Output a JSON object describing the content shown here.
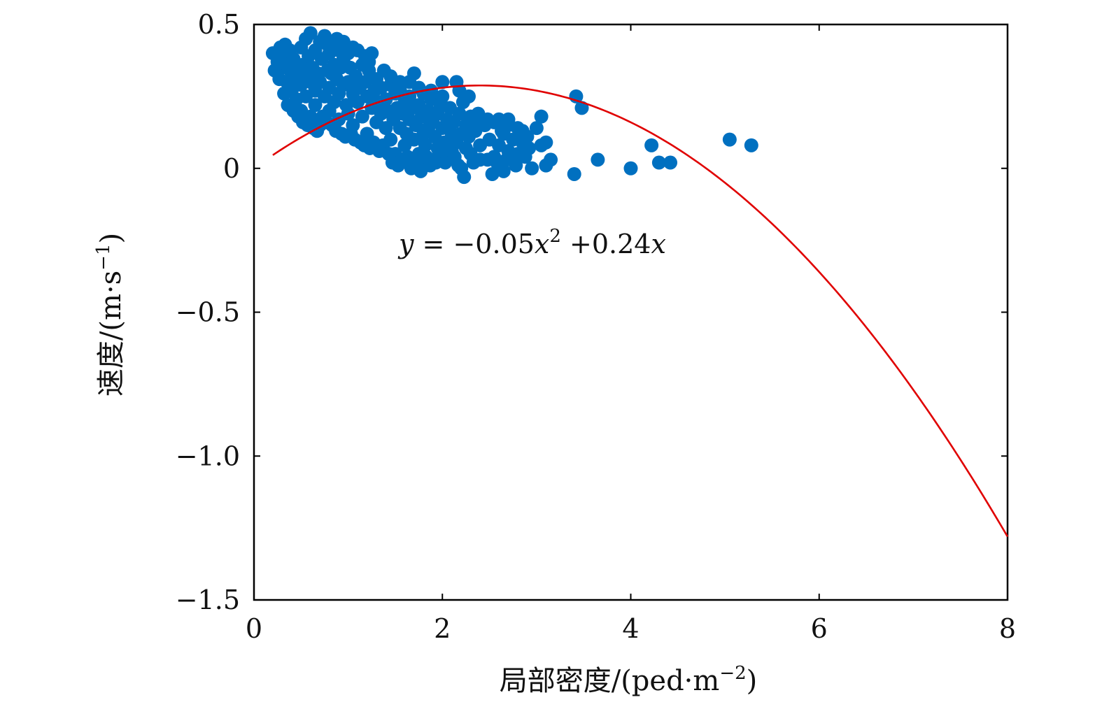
{
  "chart_data": {
    "type": "scatter",
    "xlabel": "局部密度/(ped·m",
    "xlabel_sup": "−2",
    "xlabel_end": ")",
    "ylabel": "速度/(m·s",
    "ylabel_sup": "−1",
    "ylabel_end": ")",
    "xlim": [
      0,
      8
    ],
    "ylim": [
      -1.5,
      0.5
    ],
    "x_ticks": [
      0,
      2,
      4,
      6,
      8
    ],
    "x_tick_labels": [
      "0",
      "2",
      "4",
      "6",
      "8"
    ],
    "y_ticks": [
      0.5,
      0,
      -0.5,
      -1.0,
      -1.5
    ],
    "y_tick_labels": [
      "0.5",
      "0",
      "−0.5",
      "−1.0",
      "−1.5"
    ],
    "grid": false,
    "colors": {
      "points": "#0070c0",
      "fit_line": "#e00000",
      "axes": "#000000"
    },
    "annotation": {
      "y_var": "y",
      "equals": " = −0.05",
      "x_var1": "x",
      "x_sup": "2",
      "plus": " +0.24",
      "x_var2": "x"
    },
    "fit": {
      "equation": "y = -0.05x^2 + 0.24x",
      "a": -0.05,
      "b": 0.24,
      "c": 0,
      "x_range": [
        0.2,
        8
      ]
    },
    "series": [
      {
        "type": "scatter",
        "points": [
          [
            0.2,
            0.4
          ],
          [
            0.25,
            0.37
          ],
          [
            0.28,
            0.42
          ],
          [
            0.3,
            0.35
          ],
          [
            0.3,
            0.39
          ],
          [
            0.33,
            0.43
          ],
          [
            0.35,
            0.3
          ],
          [
            0.35,
            0.36
          ],
          [
            0.38,
            0.41
          ],
          [
            0.4,
            0.33
          ],
          [
            0.4,
            0.27
          ],
          [
            0.42,
            0.38
          ],
          [
            0.45,
            0.31
          ],
          [
            0.45,
            0.24
          ],
          [
            0.48,
            0.35
          ],
          [
            0.5,
            0.42
          ],
          [
            0.5,
            0.29
          ],
          [
            0.5,
            0.2
          ],
          [
            0.52,
            0.36
          ],
          [
            0.55,
            0.45
          ],
          [
            0.55,
            0.32
          ],
          [
            0.55,
            0.25
          ],
          [
            0.58,
            0.39
          ],
          [
            0.6,
            0.47
          ],
          [
            0.6,
            0.3
          ],
          [
            0.6,
            0.18
          ],
          [
            0.62,
            0.35
          ],
          [
            0.65,
            0.41
          ],
          [
            0.65,
            0.27
          ],
          [
            0.65,
            0.22
          ],
          [
            0.68,
            0.33
          ],
          [
            0.7,
            0.44
          ],
          [
            0.7,
            0.3
          ],
          [
            0.7,
            0.15
          ],
          [
            0.72,
            0.38
          ],
          [
            0.75,
            0.25
          ],
          [
            0.75,
            0.46
          ],
          [
            0.78,
            0.34
          ],
          [
            0.8,
            0.4
          ],
          [
            0.8,
            0.28
          ],
          [
            0.8,
            0.2
          ],
          [
            0.82,
            0.33
          ],
          [
            0.85,
            0.36
          ],
          [
            0.85,
            0.23
          ],
          [
            0.88,
            0.31
          ],
          [
            0.9,
            0.41
          ],
          [
            0.9,
            0.26
          ],
          [
            0.9,
            0.17
          ],
          [
            0.92,
            0.35
          ],
          [
            0.95,
            0.29
          ],
          [
            0.95,
            0.38
          ],
          [
            0.98,
            0.22
          ],
          [
            1.0,
            0.4
          ],
          [
            1.0,
            0.3
          ],
          [
            1.0,
            0.19
          ],
          [
            1.02,
            0.35
          ],
          [
            1.05,
            0.26
          ],
          [
            1.05,
            0.15
          ],
          [
            1.08,
            0.32
          ],
          [
            1.1,
            0.41
          ],
          [
            1.1,
            0.23
          ],
          [
            1.12,
            0.28
          ],
          [
            1.15,
            0.36
          ],
          [
            1.15,
            0.18
          ],
          [
            1.18,
            0.3
          ],
          [
            1.2,
            0.25
          ],
          [
            1.2,
            0.12
          ],
          [
            1.22,
            0.34
          ],
          [
            1.25,
            0.21
          ],
          [
            1.25,
            0.4
          ],
          [
            1.28,
            0.27
          ],
          [
            1.3,
            0.16
          ],
          [
            1.3,
            0.31
          ],
          [
            1.32,
            0.23
          ],
          [
            1.35,
            0.19
          ],
          [
            1.35,
            0.28
          ],
          [
            1.38,
            0.34
          ],
          [
            1.4,
            0.14
          ],
          [
            1.4,
            0.24
          ],
          [
            1.42,
            0.2
          ],
          [
            1.45,
            0.29
          ],
          [
            1.45,
            0.1
          ],
          [
            1.48,
            0.17
          ],
          [
            1.5,
            0.26
          ],
          [
            1.5,
            0.05
          ],
          [
            1.52,
            0.21
          ],
          [
            1.55,
            0.14
          ],
          [
            1.55,
            0.27
          ],
          [
            1.58,
            0.19
          ],
          [
            1.6,
            0.23
          ],
          [
            1.6,
            0.08
          ],
          [
            1.62,
            0.12
          ],
          [
            1.65,
            0.25
          ],
          [
            1.65,
            0.17
          ],
          [
            1.68,
            0.21
          ],
          [
            1.7,
            0.33
          ],
          [
            1.7,
            0.1
          ],
          [
            1.72,
            0.15
          ],
          [
            1.75,
            0.22
          ],
          [
            1.75,
            0.05
          ],
          [
            1.78,
            0.18
          ],
          [
            1.8,
            0.26
          ],
          [
            1.8,
            0.12
          ],
          [
            1.82,
            0.08
          ],
          [
            1.85,
            0.2
          ],
          [
            1.85,
            0.14
          ],
          [
            1.88,
            0.24
          ],
          [
            1.9,
            0.03
          ],
          [
            1.9,
            0.16
          ],
          [
            1.92,
            0.11
          ],
          [
            1.95,
            0.19
          ],
          [
            1.95,
            0.07
          ],
          [
            1.98,
            0.22
          ],
          [
            2.0,
            0.14
          ],
          [
            2.0,
            0.25
          ],
          [
            2.02,
            0.09
          ],
          [
            2.05,
            0.17
          ],
          [
            2.05,
            0.04
          ],
          [
            2.08,
            0.21
          ],
          [
            2.1,
            0.12
          ],
          [
            2.1,
            0.06
          ],
          [
            2.12,
            0.16
          ],
          [
            2.15,
            0.3
          ],
          [
            2.15,
            0.09
          ],
          [
            2.18,
            0.19
          ],
          [
            2.2,
            0.12
          ],
          [
            2.2,
            0.0
          ],
          [
            2.22,
            0.23
          ],
          [
            2.25,
            0.07
          ],
          [
            2.25,
            0.15
          ],
          [
            2.28,
            0.11
          ],
          [
            2.3,
            0.05
          ],
          [
            2.3,
            0.18
          ],
          [
            2.35,
            0.13
          ],
          [
            2.4,
            0.08
          ],
          [
            2.4,
            0.03
          ],
          [
            2.45,
            0.15
          ],
          [
            2.5,
            0.1
          ],
          [
            2.55,
            0.04
          ],
          [
            2.6,
            0.17
          ],
          [
            2.6,
            0.08
          ],
          [
            2.65,
            0.12
          ],
          [
            2.65,
            -0.01
          ],
          [
            2.7,
            0.06
          ],
          [
            2.7,
            0.15
          ],
          [
            2.75,
            0.1
          ],
          [
            2.8,
            0.05
          ],
          [
            2.8,
            0.14
          ],
          [
            2.85,
            0.09
          ],
          [
            2.9,
            0.11
          ],
          [
            2.95,
            0.0
          ],
          [
            3.0,
            0.14
          ],
          [
            3.05,
            0.18
          ],
          [
            3.05,
            0.08
          ],
          [
            3.1,
            0.01
          ],
          [
            3.1,
            0.09
          ],
          [
            3.15,
            0.03
          ],
          [
            3.4,
            -0.02
          ],
          [
            3.42,
            0.25
          ],
          [
            3.48,
            0.21
          ],
          [
            3.65,
            0.03
          ],
          [
            4.0,
            0.0
          ],
          [
            4.22,
            0.08
          ],
          [
            4.3,
            0.02
          ],
          [
            4.42,
            0.02
          ],
          [
            5.05,
            0.1
          ],
          [
            5.28,
            0.08
          ],
          [
            0.22,
            0.34
          ],
          [
            0.27,
            0.31
          ],
          [
            0.32,
            0.26
          ],
          [
            0.36,
            0.22
          ],
          [
            0.42,
            0.2
          ],
          [
            0.47,
            0.18
          ],
          [
            0.52,
            0.16
          ],
          [
            0.57,
            0.15
          ],
          [
            0.63,
            0.14
          ],
          [
            0.67,
            0.13
          ],
          [
            0.73,
            0.18
          ],
          [
            0.77,
            0.16
          ],
          [
            0.83,
            0.15
          ],
          [
            0.87,
            0.13
          ],
          [
            0.93,
            0.12
          ],
          [
            0.97,
            0.11
          ],
          [
            1.03,
            0.12
          ],
          [
            1.07,
            0.1
          ],
          [
            1.13,
            0.09
          ],
          [
            1.17,
            0.08
          ],
          [
            1.23,
            0.07
          ],
          [
            1.27,
            0.09
          ],
          [
            1.33,
            0.06
          ],
          [
            1.37,
            0.08
          ],
          [
            1.43,
            0.05
          ],
          [
            1.47,
            0.02
          ],
          [
            1.53,
            0.01
          ],
          [
            1.57,
            0.03
          ],
          [
            1.63,
            0.04
          ],
          [
            1.67,
            0.0
          ],
          [
            1.73,
            0.02
          ],
          [
            1.77,
            -0.01
          ],
          [
            1.83,
            0.04
          ],
          [
            1.87,
            0.01
          ],
          [
            1.93,
            0.02
          ],
          [
            1.97,
            0.05
          ],
          [
            2.03,
            0.02
          ],
          [
            2.07,
            0.07
          ],
          [
            2.13,
            0.04
          ],
          [
            2.17,
            0.01
          ],
          [
            2.23,
            -0.03
          ],
          [
            2.33,
            0.02
          ],
          [
            2.38,
            0.16
          ],
          [
            2.48,
            0.03
          ],
          [
            2.53,
            -0.02
          ],
          [
            2.58,
            0.02
          ],
          [
            2.63,
            0.13
          ],
          [
            2.68,
            0.03
          ],
          [
            2.78,
            0.01
          ],
          [
            2.88,
            0.04
          ],
          [
            0.78,
            0.43
          ],
          [
            0.88,
            0.45
          ],
          [
            0.95,
            0.44
          ],
          [
            1.05,
            0.42
          ],
          [
            1.18,
            0.39
          ],
          [
            1.22,
            0.37
          ],
          [
            1.45,
            0.32
          ],
          [
            1.55,
            0.3
          ],
          [
            1.65,
            0.3
          ],
          [
            1.75,
            0.28
          ],
          [
            1.88,
            0.27
          ],
          [
            2.0,
            0.3
          ],
          [
            2.18,
            0.27
          ],
          [
            2.28,
            0.25
          ],
          [
            2.38,
            0.19
          ],
          [
            2.48,
            0.17
          ],
          [
            2.55,
            0.16
          ],
          [
            2.7,
            0.17
          ],
          [
            2.85,
            0.13
          ],
          [
            2.92,
            0.07
          ]
        ]
      },
      {
        "type": "line",
        "name": ""
      }
    ]
  }
}
